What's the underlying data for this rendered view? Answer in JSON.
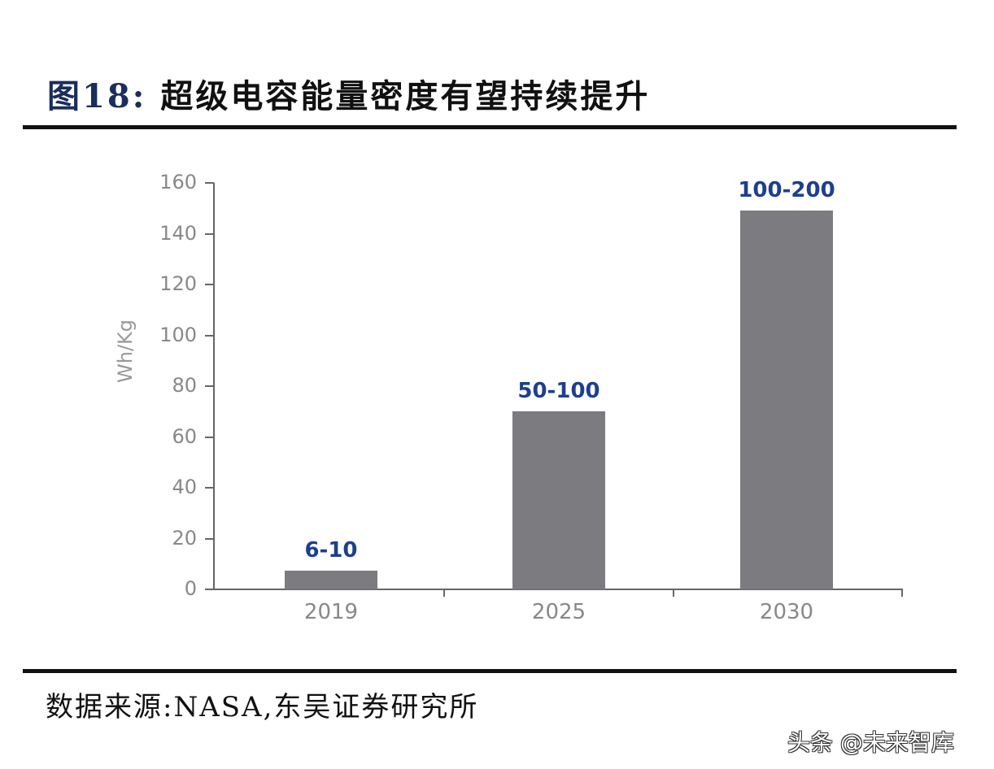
{
  "header": {
    "figure_number": "图18:",
    "title": "超级电容能量密度有望持续提升"
  },
  "chart_data": {
    "type": "bar",
    "title": "超级电容能量密度有望持续提升",
    "categories": [
      "2019",
      "2025",
      "2030"
    ],
    "values": [
      7.5,
      70,
      149
    ],
    "data_labels": [
      "6-10",
      "50-100",
      "100-200"
    ],
    "xlabel": "",
    "ylabel": "Wh/Kg",
    "ylim": [
      0,
      160
    ],
    "yticks": [
      0,
      20,
      40,
      60,
      80,
      100,
      120,
      140,
      160
    ],
    "grid": false,
    "legend": null,
    "bar_color": "#7c7b80",
    "label_color": "#1d3f8f"
  },
  "chart": {
    "ylabel": "Wh/Kg",
    "yticks": [
      "0",
      "20",
      "40",
      "60",
      "80",
      "100",
      "120",
      "140",
      "160"
    ],
    "bars": [
      {
        "category": "2019",
        "label": "6-10"
      },
      {
        "category": "2025",
        "label": "50-100"
      },
      {
        "category": "2030",
        "label": "100-200"
      }
    ]
  },
  "footer": {
    "source": "数据来源:NASA,东吴证券研究所",
    "watermark": "头条 @未来智库"
  }
}
